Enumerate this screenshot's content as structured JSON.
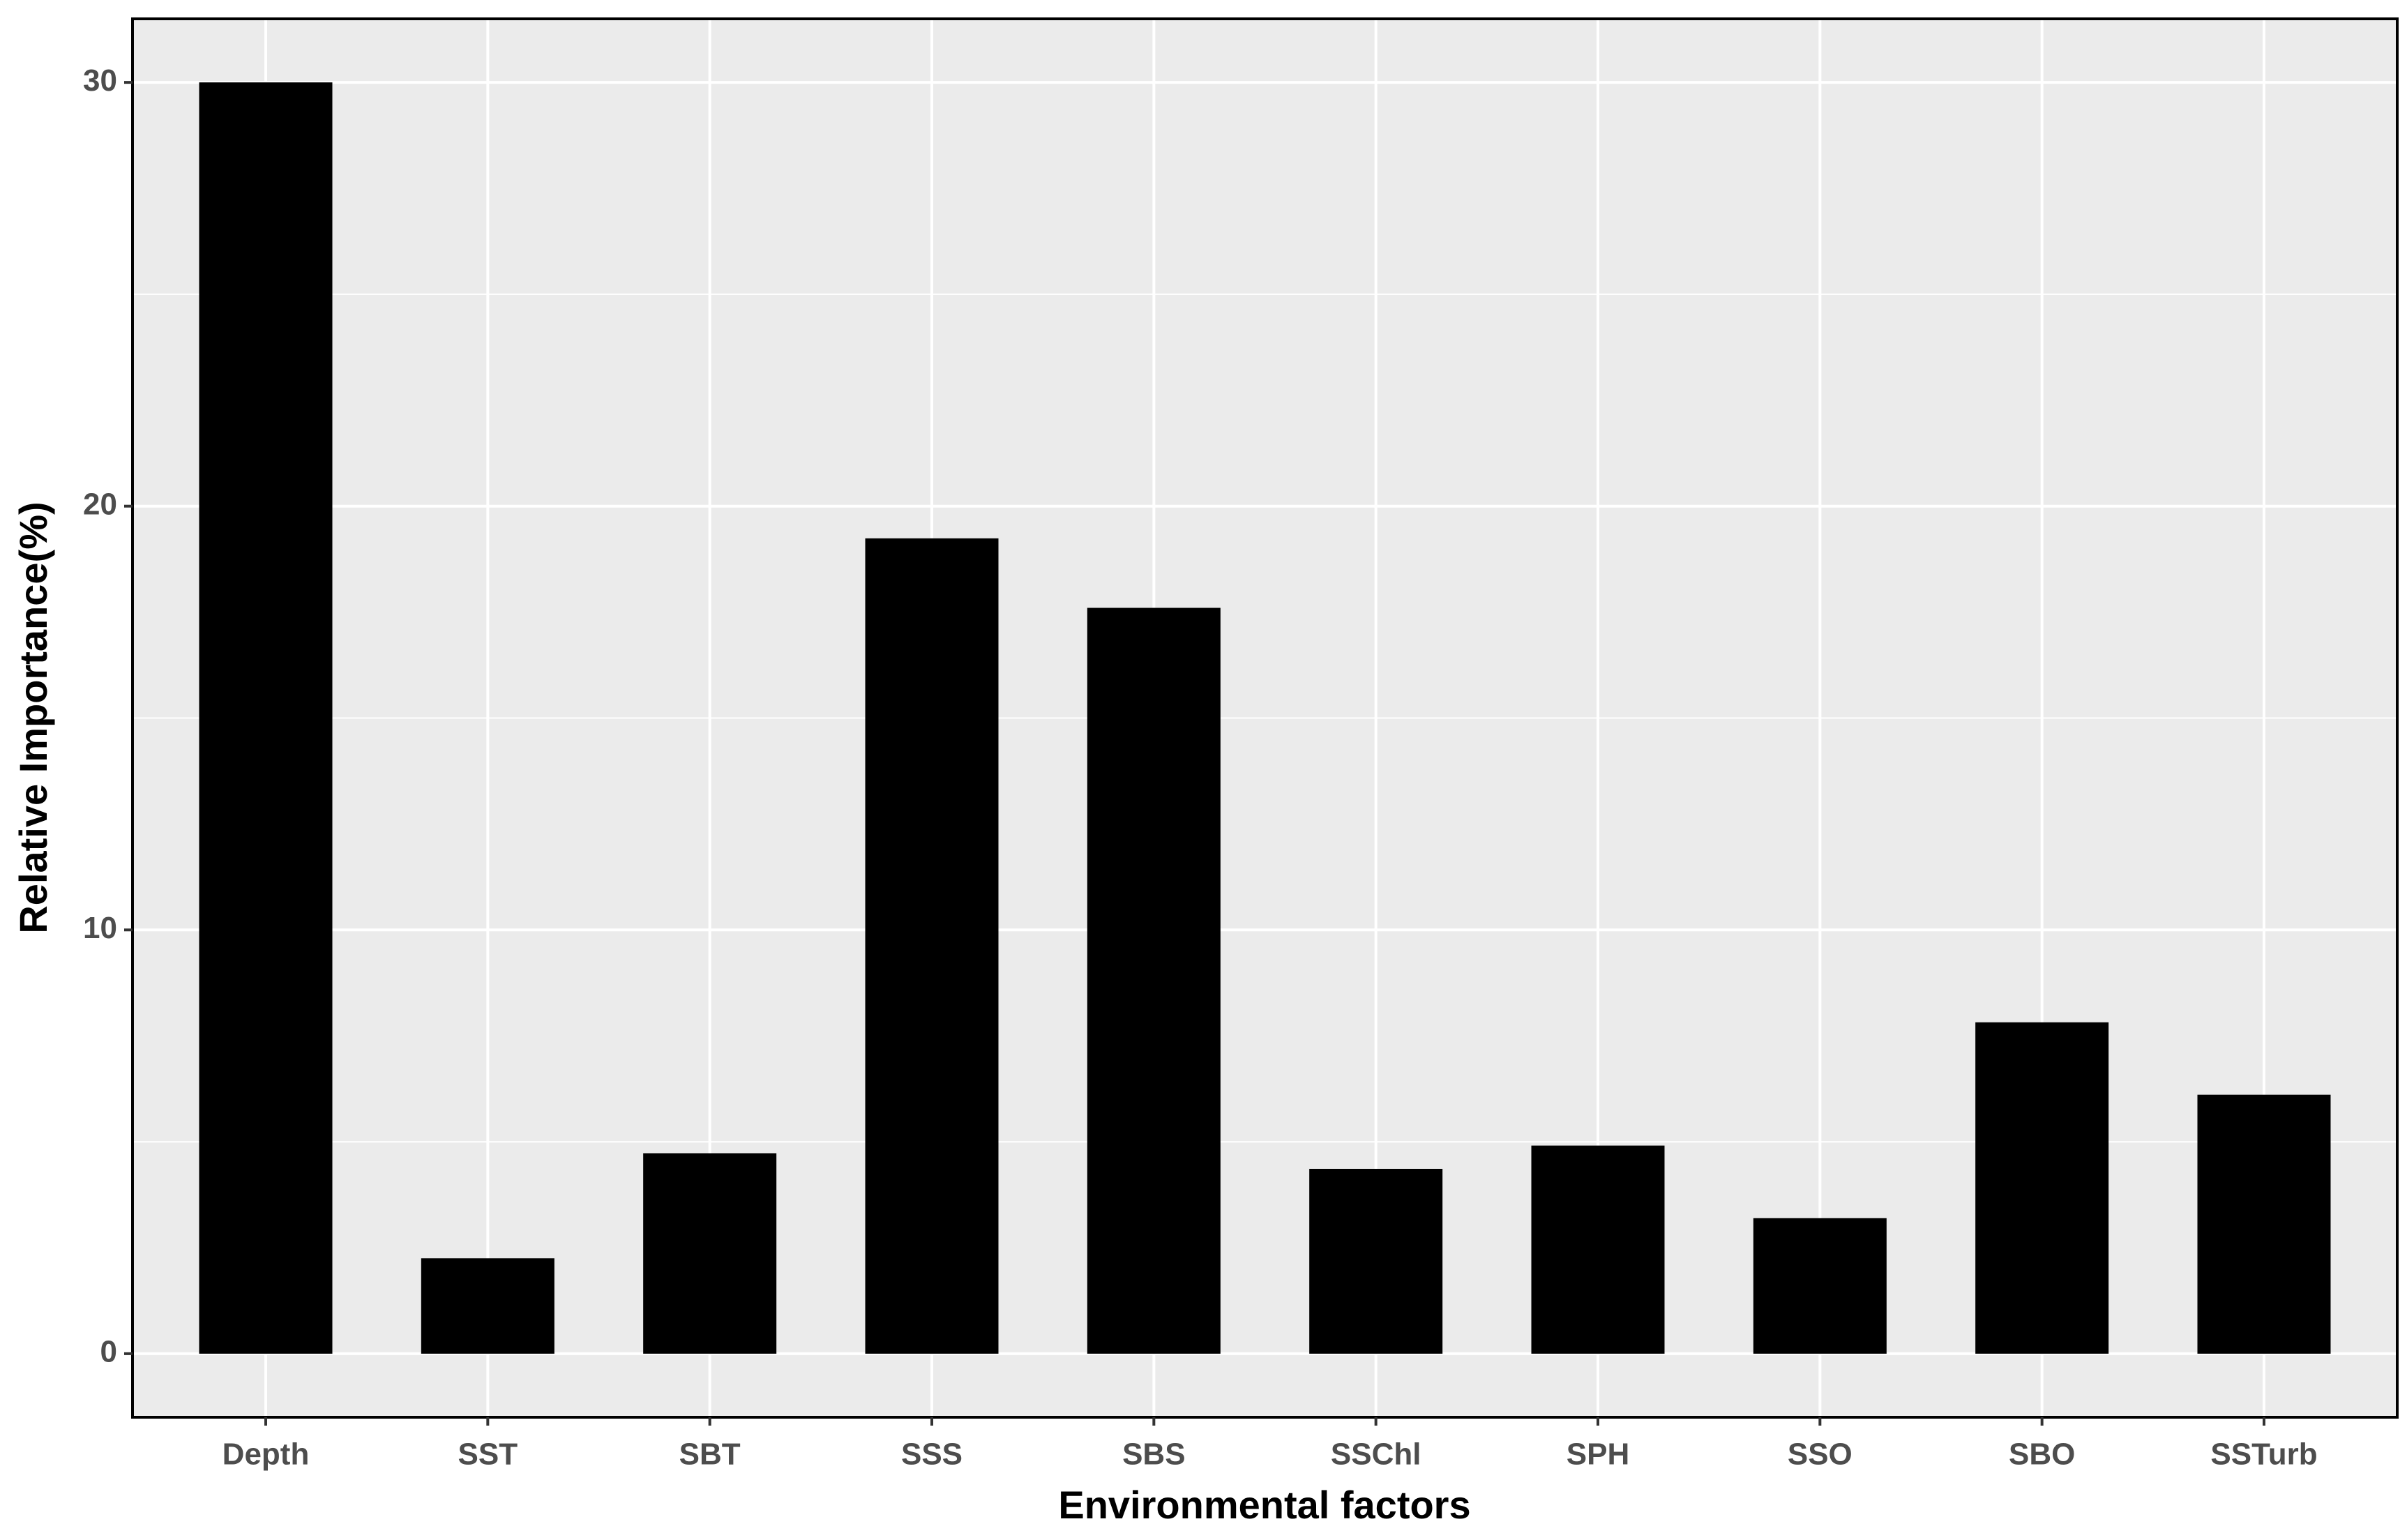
{
  "chart_data": {
    "type": "bar",
    "x_label": "Environmental factors",
    "y_label": "Relative Importance(%)",
    "categories": [
      "Depth",
      "SST",
      "SBT",
      "SSS",
      "SBS",
      "SSChl",
      "SPH",
      "SSO",
      "SBO",
      "SSTurb"
    ],
    "values": [
      30,
      2.25,
      4.73,
      19.24,
      17.6,
      4.36,
      4.91,
      3.2,
      7.82,
      6.11
    ],
    "color": "#000000",
    "ylim": [
      -1.5,
      31.5
    ],
    "yticks": [
      0,
      10,
      20,
      30
    ],
    "yminor": [
      5,
      15,
      25
    ],
    "grid": true
  }
}
